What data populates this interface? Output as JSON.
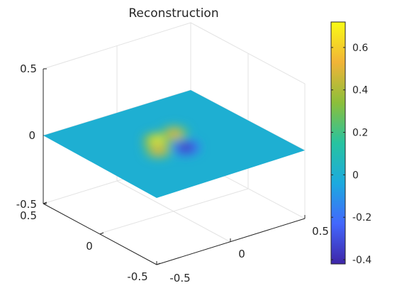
{
  "chart_data": {
    "type": "surface",
    "title": "Reconstruction",
    "xlabel": "",
    "ylabel": "",
    "zlabel": "",
    "xlim": [
      -0.5,
      0.5
    ],
    "ylim": [
      -0.5,
      0.5
    ],
    "zlim": [
      -0.5,
      0.5
    ],
    "x_ticks": [
      "-0.5",
      "0",
      "0.5"
    ],
    "y_ticks": [
      "-0.5",
      "0",
      "0.5"
    ],
    "z_ticks": [
      "-0.5",
      "0",
      "0.5"
    ],
    "grid": true,
    "surface_level": 0,
    "features": [
      {
        "kind": "peak",
        "x": -0.05,
        "y": 0.08,
        "value": 0.7
      },
      {
        "kind": "peak",
        "x": 0.08,
        "y": 0.1,
        "value": 0.5
      },
      {
        "kind": "peak",
        "x": -0.12,
        "y": -0.02,
        "value": 0.5
      },
      {
        "kind": "trough",
        "x": 0.02,
        "y": -0.08,
        "value": -0.4
      }
    ],
    "colorbar": {
      "min": -0.42,
      "max": 0.72,
      "ticks": [
        -0.4,
        -0.2,
        0,
        0.2,
        0.4,
        0.6
      ],
      "tick_labels": [
        "-0.4",
        "-0.2",
        "0",
        "0.2",
        "0.4",
        "0.6"
      ],
      "colormap": "parula",
      "stops": [
        "#3e26a8",
        "#4367fd",
        "#1caadf",
        "#27c3a0",
        "#8cbf3a",
        "#f1b437",
        "#f9fb15"
      ]
    }
  }
}
